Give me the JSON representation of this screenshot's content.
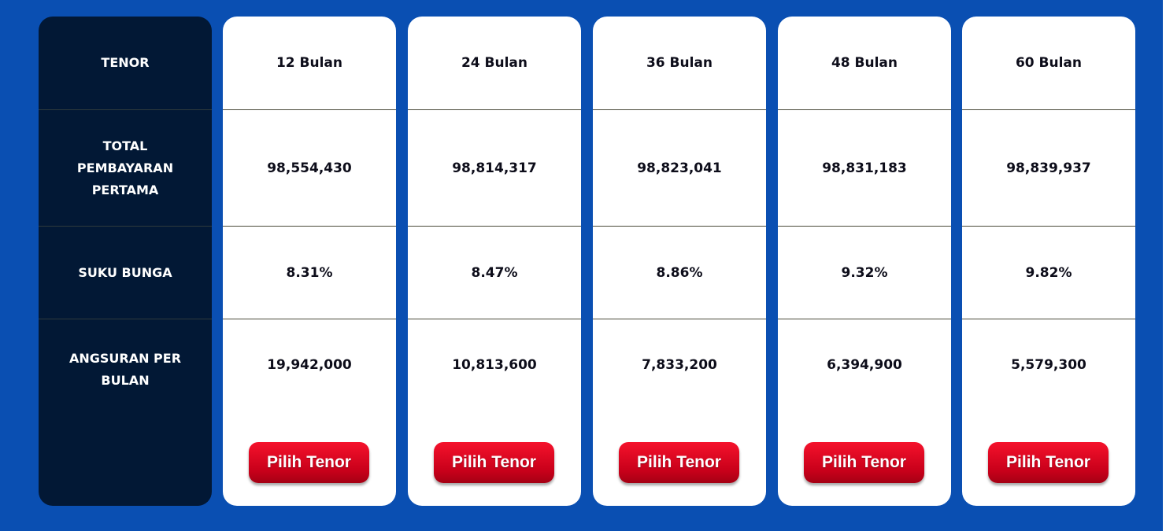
{
  "labels": {
    "tenor": "TENOR",
    "total_pembayaran": "TOTAL PEMBAYARAN PERTAMA",
    "suku_bunga": "SUKU BUNGA",
    "angsuran": "ANGSURAN PER BULAN"
  },
  "options": [
    {
      "tenor": "12 Bulan",
      "total": "98,554,430",
      "rate": "8.31%",
      "installment": "19,942,000",
      "button": "Pilih Tenor"
    },
    {
      "tenor": "24 Bulan",
      "total": "98,814,317",
      "rate": "8.47%",
      "installment": "10,813,600",
      "button": "Pilih Tenor"
    },
    {
      "tenor": "36 Bulan",
      "total": "98,823,041",
      "rate": "8.86%",
      "installment": "7,833,200",
      "button": "Pilih Tenor"
    },
    {
      "tenor": "48 Bulan",
      "total": "98,831,183",
      "rate": "9.32%",
      "installment": "6,394,900",
      "button": "Pilih Tenor"
    },
    {
      "tenor": "60 Bulan",
      "total": "98,839,937",
      "rate": "9.82%",
      "installment": "5,579,300",
      "button": "Pilih Tenor"
    }
  ],
  "colors": {
    "background": "#0a4fb2",
    "label_column": "#021835",
    "card": "#ffffff",
    "button": "#e0061f"
  }
}
